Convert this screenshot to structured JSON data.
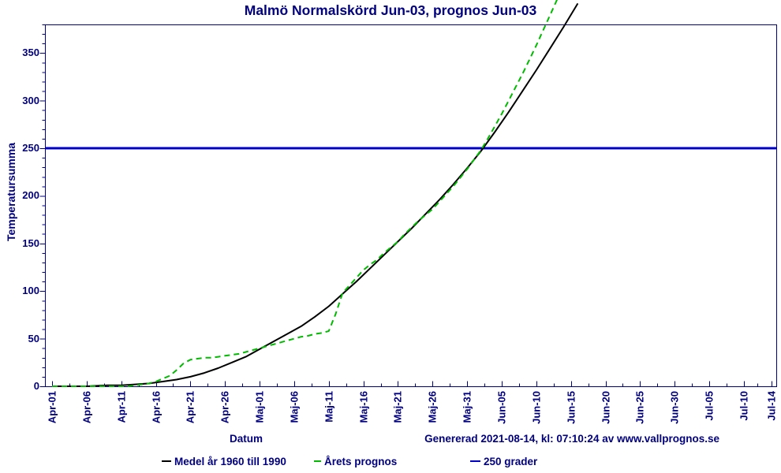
{
  "title": "Malmö Normalskörd Jun-03, prognos Jun-03",
  "colors": {
    "text": "#000080",
    "axis": "#000080",
    "normal_line": "#000000",
    "forecast_line": "#00BB00",
    "threshold_line": "#0000CC"
  },
  "footer": {
    "generated_text": "Genererad 2021-08-14, kl: 07:10:24 av www.vallprognos.se"
  },
  "legend": [
    {
      "label": "Medel år 1960 till 1990",
      "color": "#000000",
      "style": "solid",
      "swatch_width": 12
    },
    {
      "label": "Årets prognos",
      "color": "#00BB00",
      "style": "dashed",
      "swatch_width": 9
    },
    {
      "label": "250 grader",
      "color": "#0000CC",
      "style": "solid",
      "swatch_width": 13
    }
  ],
  "chart_data": {
    "type": "line",
    "title": "Malmö Normalskörd Jun-03, prognos Jun-03",
    "xlabel": "Datum",
    "ylabel": "Temperatursumma",
    "x_tick_labels": [
      "Apr-01",
      "Apr-06",
      "Apr-11",
      "Apr-16",
      "Apr-21",
      "Apr-26",
      "Maj-01",
      "Maj-06",
      "Maj-11",
      "Maj-16",
      "Maj-21",
      "Maj-26",
      "Maj-31",
      "Jun-05",
      "Jun-10",
      "Jun-15",
      "Jun-20",
      "Jun-25",
      "Jun-30",
      "Jul-05",
      "Jul-10",
      "Jul-14"
    ],
    "x_tick_days": [
      0,
      5,
      10,
      15,
      20,
      25,
      30,
      35,
      40,
      45,
      50,
      55,
      60,
      65,
      70,
      75,
      80,
      85,
      90,
      95,
      100,
      104
    ],
    "x_range_days": [
      -1,
      104.8
    ],
    "y_ticks": [
      0,
      50,
      100,
      150,
      200,
      250,
      300,
      350
    ],
    "y_minor_step": 10,
    "ylim": [
      0,
      380
    ],
    "grid": "off",
    "legend_position": "bottom",
    "threshold": {
      "value": 250,
      "label": "250 grader"
    },
    "series": [
      {
        "name": "Medel år 1960 till 1990",
        "style": "solid",
        "color": "#000000",
        "points_day_value": [
          [
            0,
            0
          ],
          [
            5,
            0
          ],
          [
            8,
            1
          ],
          [
            10,
            1
          ],
          [
            12,
            2
          ],
          [
            14,
            3
          ],
          [
            16,
            5
          ],
          [
            18,
            7
          ],
          [
            20,
            10
          ],
          [
            22,
            14
          ],
          [
            24,
            19
          ],
          [
            26,
            25
          ],
          [
            28,
            31
          ],
          [
            30,
            39
          ],
          [
            32,
            47
          ],
          [
            34,
            55
          ],
          [
            36,
            63
          ],
          [
            38,
            73
          ],
          [
            40,
            84
          ],
          [
            42,
            97
          ],
          [
            44,
            110
          ],
          [
            46,
            124
          ],
          [
            48,
            138
          ],
          [
            50,
            152
          ],
          [
            52,
            166
          ],
          [
            54,
            181
          ],
          [
            56,
            196
          ],
          [
            58,
            212
          ],
          [
            60,
            229
          ],
          [
            62,
            247
          ],
          [
            64,
            267
          ],
          [
            66,
            288
          ],
          [
            68,
            310
          ],
          [
            70,
            332
          ],
          [
            72,
            355
          ],
          [
            74,
            378
          ],
          [
            76,
            402
          ]
        ]
      },
      {
        "name": "Årets prognos",
        "style": "dashed",
        "color": "#00BB00",
        "points_day_value": [
          [
            0,
            0
          ],
          [
            6,
            0
          ],
          [
            9,
            0
          ],
          [
            11,
            0
          ],
          [
            12,
            1
          ],
          [
            13,
            2
          ],
          [
            14,
            3
          ],
          [
            15,
            5
          ],
          [
            16,
            8
          ],
          [
            17,
            11
          ],
          [
            18,
            17
          ],
          [
            19,
            24
          ],
          [
            20,
            28
          ],
          [
            21,
            29
          ],
          [
            22,
            30
          ],
          [
            23,
            30
          ],
          [
            24,
            31
          ],
          [
            25,
            32
          ],
          [
            26,
            33
          ],
          [
            27,
            34
          ],
          [
            28,
            36
          ],
          [
            29,
            38
          ],
          [
            30,
            40
          ],
          [
            31,
            42
          ],
          [
            32,
            44
          ],
          [
            33,
            46
          ],
          [
            34,
            48
          ],
          [
            35,
            50
          ],
          [
            36,
            52
          ],
          [
            37,
            53
          ],
          [
            38,
            55
          ],
          [
            39,
            56
          ],
          [
            40,
            58
          ],
          [
            41,
            76
          ],
          [
            42,
            98
          ],
          [
            43,
            106
          ],
          [
            44,
            114
          ],
          [
            45,
            122
          ],
          [
            46,
            128
          ],
          [
            47,
            133
          ],
          [
            48,
            140
          ],
          [
            49,
            146
          ],
          [
            50,
            152
          ],
          [
            51,
            160
          ],
          [
            52,
            167
          ],
          [
            53,
            174
          ],
          [
            54,
            180
          ],
          [
            55,
            186
          ],
          [
            56,
            194
          ],
          [
            57,
            202
          ],
          [
            58,
            210
          ],
          [
            59,
            219
          ],
          [
            60,
            228
          ],
          [
            61,
            238
          ],
          [
            62,
            248
          ],
          [
            63,
            260
          ],
          [
            64,
            273
          ],
          [
            65,
            286
          ],
          [
            66,
            300
          ],
          [
            67,
            314
          ],
          [
            68,
            328
          ],
          [
            69,
            343
          ],
          [
            70,
            358
          ],
          [
            71,
            374
          ],
          [
            72,
            390
          ],
          [
            73,
            406
          ]
        ]
      }
    ]
  }
}
